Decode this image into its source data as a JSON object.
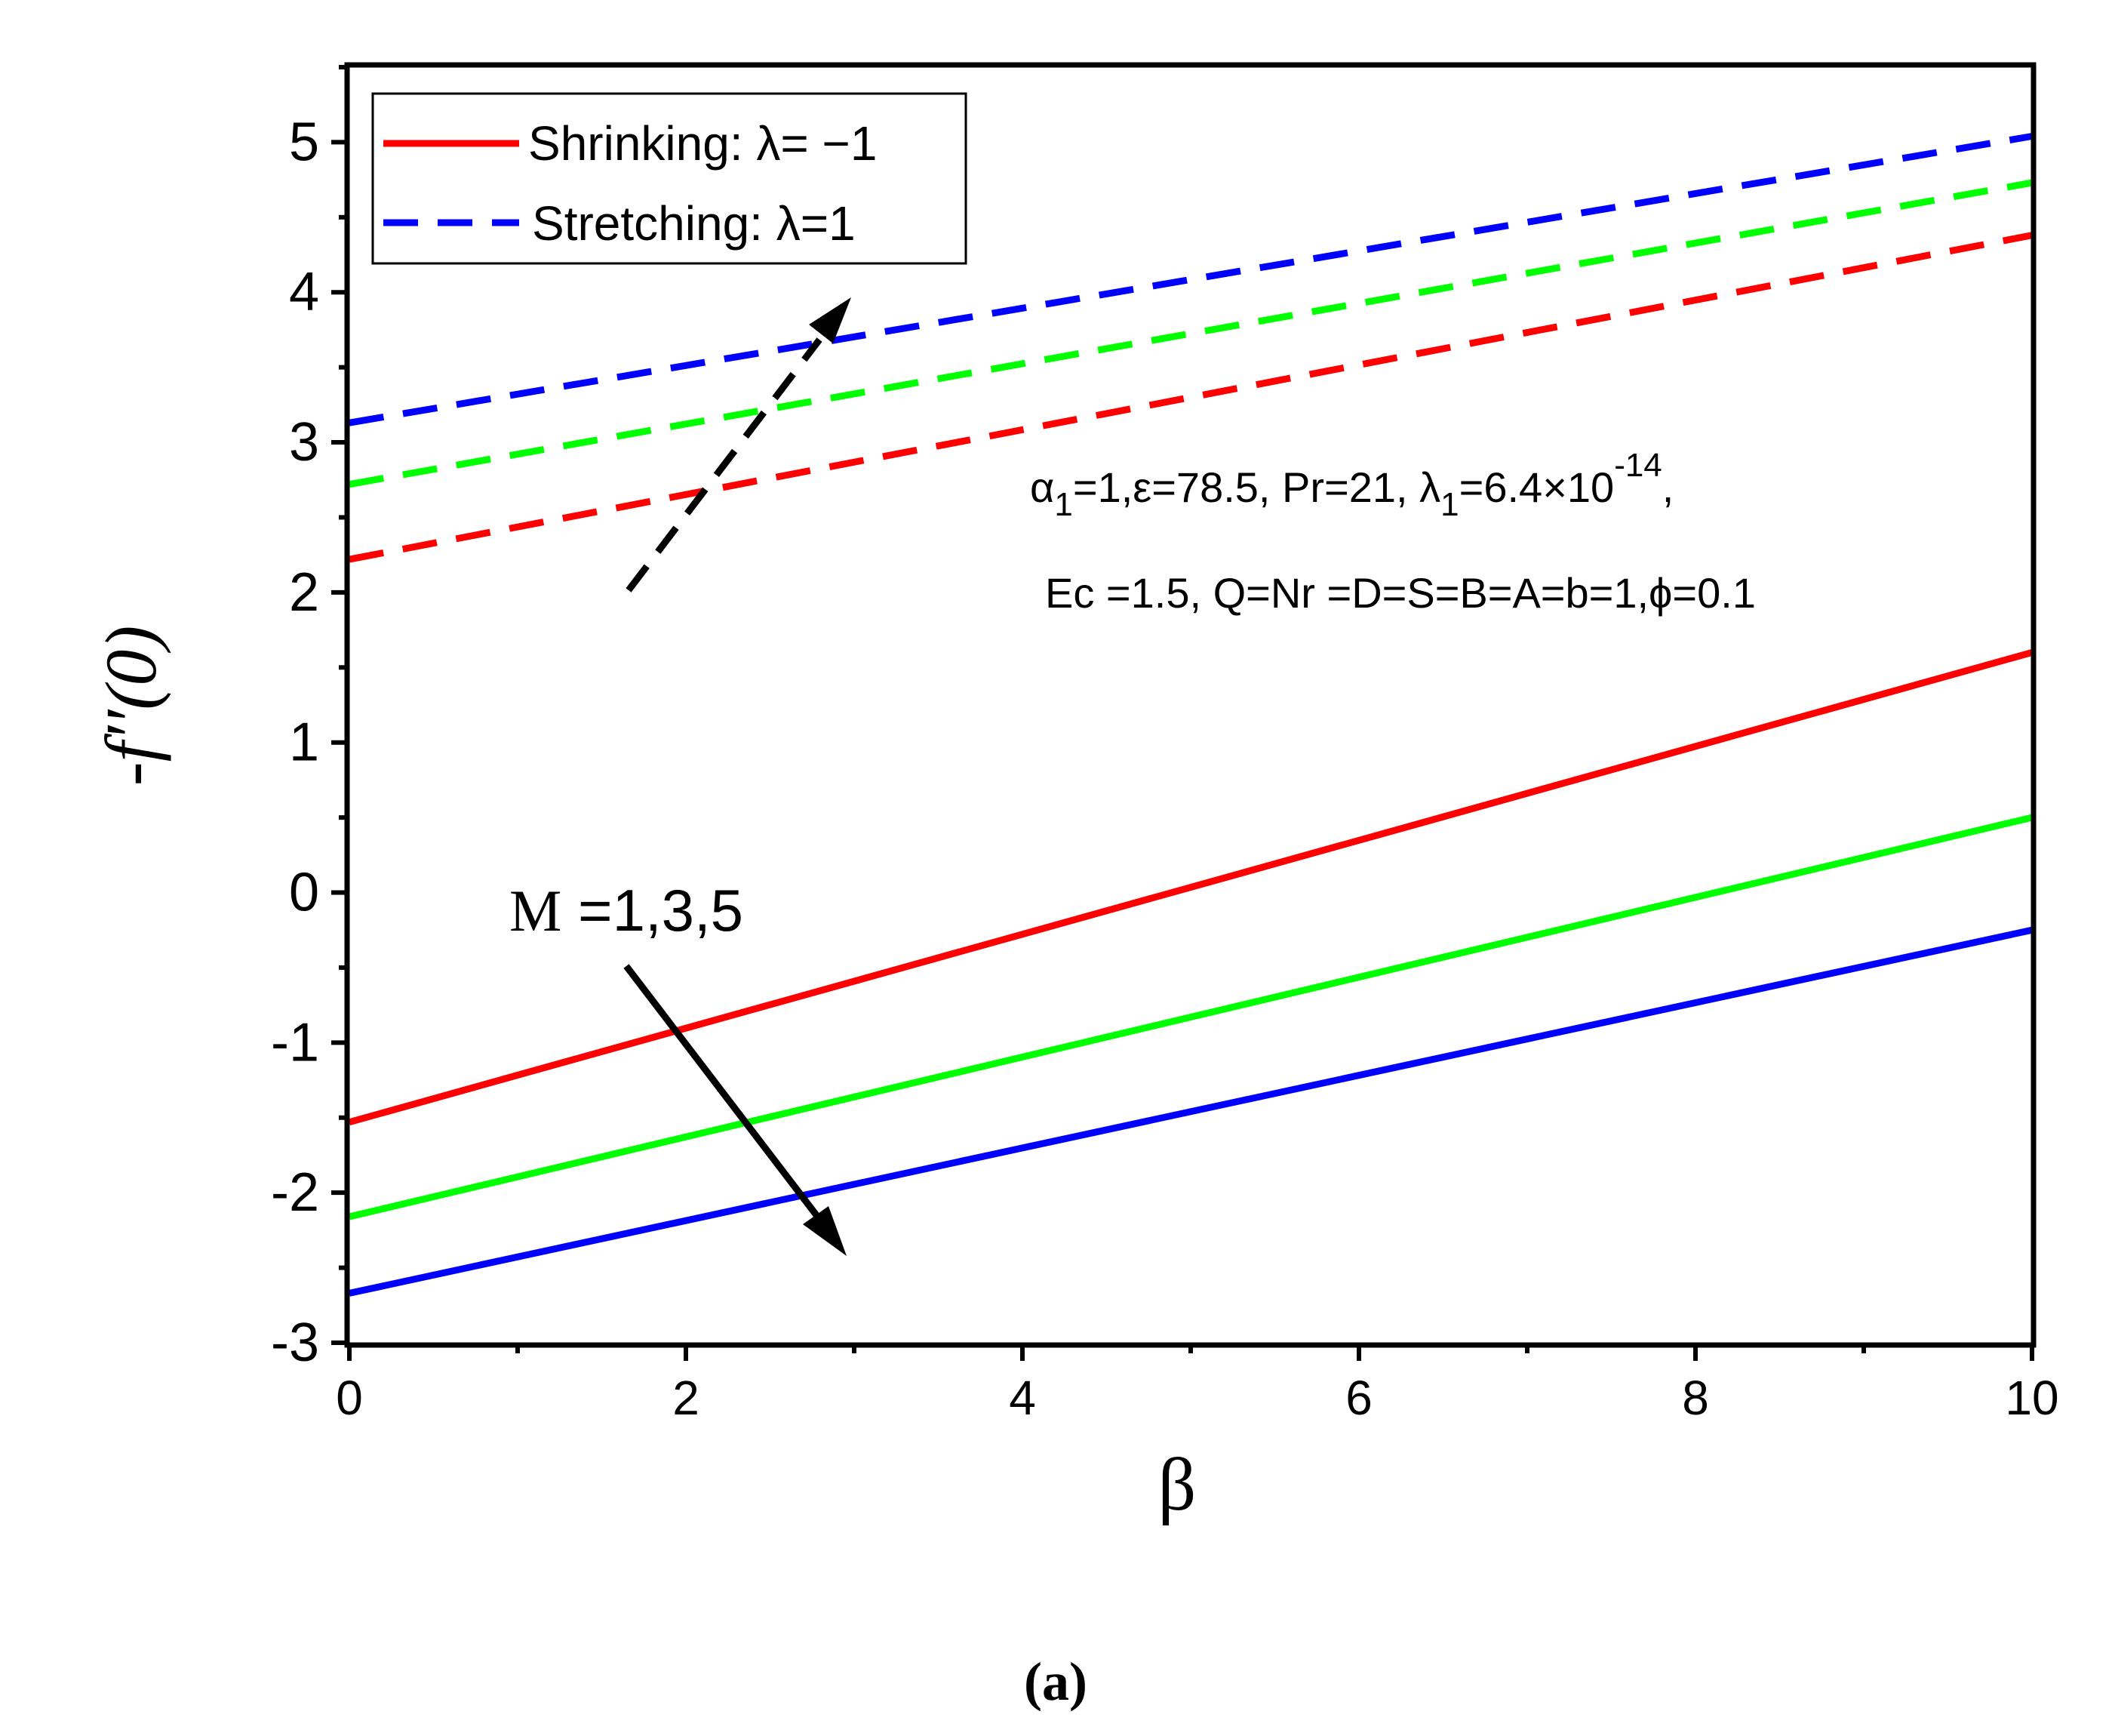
{
  "chart_data": {
    "type": "line",
    "xlabel": "β",
    "ylabel": "-f′′(0)",
    "xlim": [
      0,
      10
    ],
    "ylim": [
      -3,
      5.5
    ],
    "xticks": [
      "0",
      "2",
      "4",
      "6",
      "8",
      "10"
    ],
    "yticks": [
      "-3",
      "-2",
      "-1",
      "0",
      "1",
      "2",
      "3",
      "4",
      "5"
    ],
    "legend": {
      "position": "top-left",
      "items": [
        {
          "label": "Shrinking: λ= −1",
          "style": "solid",
          "color": "#ff0000"
        },
        {
          "label": "Stretching: λ=1",
          "style": "dashed",
          "color": "#0000ff"
        }
      ]
    },
    "series": [
      {
        "name": "Stretching M=1",
        "style": "dashed",
        "color": "#ff0000",
        "x": [
          0,
          10
        ],
        "values": [
          2.22,
          4.38
        ]
      },
      {
        "name": "Stretching M=3",
        "style": "dashed",
        "color": "#00ff00",
        "x": [
          0,
          10
        ],
        "values": [
          2.72,
          4.73
        ]
      },
      {
        "name": "Stretching M=5",
        "style": "dashed",
        "color": "#0000ff",
        "x": [
          0,
          10
        ],
        "values": [
          3.13,
          5.04
        ]
      },
      {
        "name": "Shrinking M=1",
        "style": "solid",
        "color": "#ff0000",
        "x": [
          0,
          10
        ],
        "values": [
          -1.53,
          1.6
        ]
      },
      {
        "name": "Shrinking M=3",
        "style": "solid",
        "color": "#00ff00",
        "x": [
          0,
          10
        ],
        "values": [
          -2.16,
          0.5
        ]
      },
      {
        "name": "Shrinking M=5",
        "style": "solid",
        "color": "#0000ff",
        "x": [
          0,
          10
        ],
        "values": [
          -2.67,
          -0.25
        ]
      }
    ],
    "annotations": {
      "params_line1": "α1=1,ε=78.5, Pr=21, λ1=6.4×10-14,",
      "params_line1_parts": {
        "alpha": "α",
        "alpha_sub": "1",
        "mid": "=1,ε=78.5, Pr=21, ",
        "lambda": "λ",
        "lambda_sub": "1",
        "value": "=6.4×10",
        "exp": "-14",
        "tail": ","
      },
      "params_line2": "Ec =1.5, Q=Nr =D=S=B=A=b=1,ϕ=0.1",
      "m_label_symbol": "M",
      "m_label_values": " =1,3,5"
    },
    "caption": "(a)"
  }
}
